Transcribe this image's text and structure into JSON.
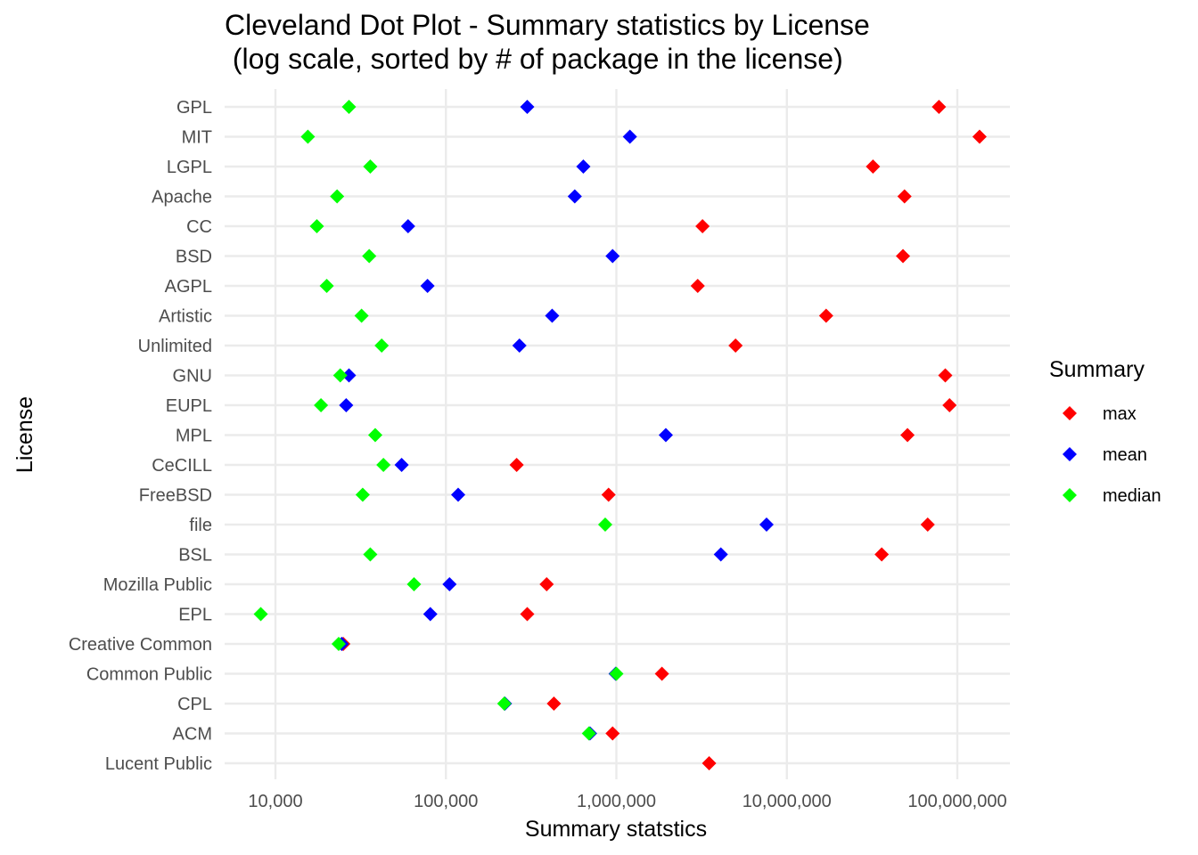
{
  "chart_data": {
    "type": "scatter",
    "title": "Cleveland Dot Plot - Summary statistics by License",
    "subtitle": " (log scale, sorted by # of package in the license)",
    "xlabel": "Summary statstics",
    "ylabel": "License",
    "x_scale": "log10",
    "xlim": [
      5500,
      180000000
    ],
    "x_ticks": [
      10000,
      100000,
      1000000,
      10000000,
      100000000
    ],
    "x_tick_labels": [
      "10,000",
      "100,000",
      "1,000,000",
      "10,000,000",
      "100,000,000"
    ],
    "grid": true,
    "legend": {
      "title": "Summary",
      "position": "right"
    },
    "categories": [
      "GPL",
      "MIT",
      "LGPL",
      "Apache",
      "CC",
      "BSD",
      "AGPL",
      "Artistic",
      "Unlimited",
      "GNU",
      "EUPL",
      "MPL",
      "CeCILL",
      "FreeBSD",
      "file",
      "BSL",
      "Mozilla Public",
      "EPL",
      "Creative Common",
      "Common Public",
      "CPL",
      "ACM",
      "Lucent Public"
    ],
    "series": [
      {
        "name": "max",
        "color": "#ff0000",
        "values": [
          78000000,
          135000000,
          32000000,
          49000000,
          3200000,
          48000000,
          3000000,
          17000000,
          5000000,
          85000000,
          90000000,
          51000000,
          260000,
          900000,
          67000000,
          36000000,
          390000,
          300000,
          25000,
          1850000,
          430000,
          950000,
          3500000
        ]
      },
      {
        "name": "mean",
        "color": "#0000ff",
        "values": [
          300000,
          1200000,
          640000,
          570000,
          60000,
          950000,
          78000,
          420000,
          270000,
          27000,
          26000,
          1950000,
          55000,
          118000,
          7600000,
          4100000,
          105000,
          81000,
          24500,
          990000,
          222000,
          700000,
          null
        ]
      },
      {
        "name": "median",
        "color": "#00ff00",
        "values": [
          27000,
          15500,
          36000,
          23000,
          17500,
          35500,
          20000,
          32000,
          42000,
          24000,
          18500,
          38500,
          43000,
          32500,
          860000,
          36000,
          65000,
          8200,
          23500,
          1000000,
          220000,
          690000,
          null
        ]
      }
    ]
  }
}
